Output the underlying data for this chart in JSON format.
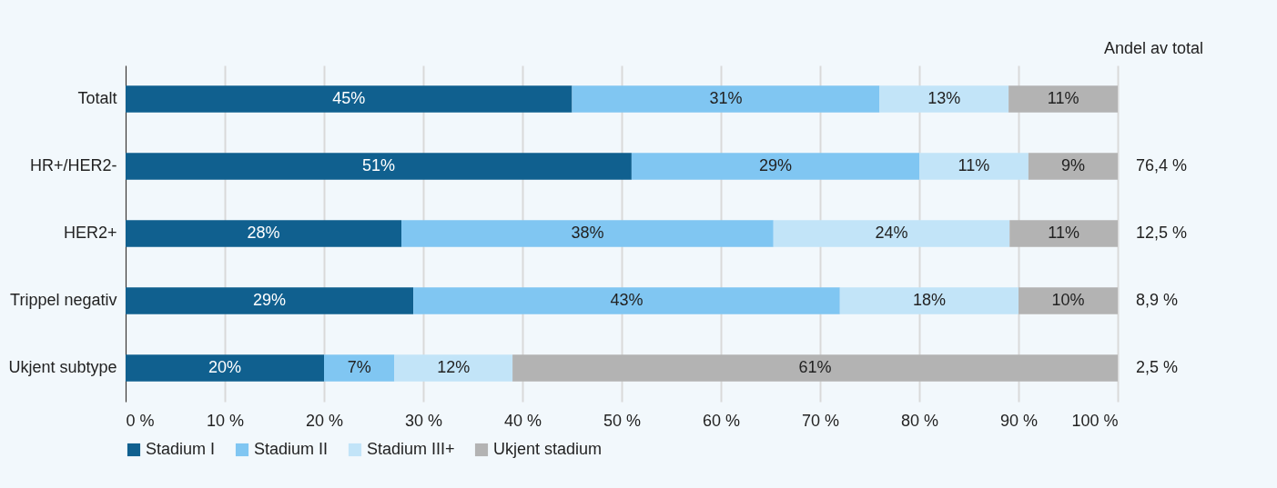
{
  "chart_data": {
    "type": "bar",
    "orientation": "horizontal",
    "stacked": true,
    "categories": [
      "Totalt",
      "HR+/HER2-",
      "HER2+",
      "Trippel negativ",
      "Ukjent subtype"
    ],
    "series": [
      {
        "name": "Stadium I",
        "color": "#10608f",
        "values": [
          45,
          51,
          27.8,
          29,
          20
        ],
        "value_labels": [
          "45%",
          "51%",
          "28%",
          "29%",
          "20%"
        ]
      },
      {
        "name": "Stadium II",
        "color": "#80c6f2",
        "values": [
          31,
          29,
          37.5,
          43,
          7.1
        ],
        "value_labels": [
          "31%",
          "29%",
          "38%",
          "43%",
          "7%"
        ]
      },
      {
        "name": "Stadium III+",
        "color": "#c2e4f8",
        "values": [
          13,
          11,
          23.8,
          18,
          11.9
        ],
        "value_labels": [
          "13%",
          "11%",
          "24%",
          "18%",
          "12%"
        ]
      },
      {
        "name": "Ukjent stadium",
        "color": "#b3b3b3",
        "values": [
          11,
          9,
          10.9,
          10,
          61
        ],
        "value_labels": [
          "11%",
          "9%",
          "11%",
          "10%",
          "61%"
        ]
      }
    ],
    "xlim": [
      0,
      100
    ],
    "xticks": [
      {
        "value": 0,
        "label": "0 %"
      },
      {
        "value": 10,
        "label": "10 %"
      },
      {
        "value": 20,
        "label": "20 %"
      },
      {
        "value": 30,
        "label": "30 %"
      },
      {
        "value": 40,
        "label": "40 %"
      },
      {
        "value": 50,
        "label": "50 %"
      },
      {
        "value": 60,
        "label": "60 %"
      },
      {
        "value": 70,
        "label": "70 %"
      },
      {
        "value": 80,
        "label": "80 %"
      },
      {
        "value": 90,
        "label": "90 %"
      },
      {
        "value": 100,
        "label": "100 %"
      }
    ],
    "grid": "x",
    "legend": "bottom",
    "annotations": [
      "Andel av total",
      "76,4 %",
      "12,5 %",
      "8,9 %",
      "2,5 %"
    ]
  }
}
